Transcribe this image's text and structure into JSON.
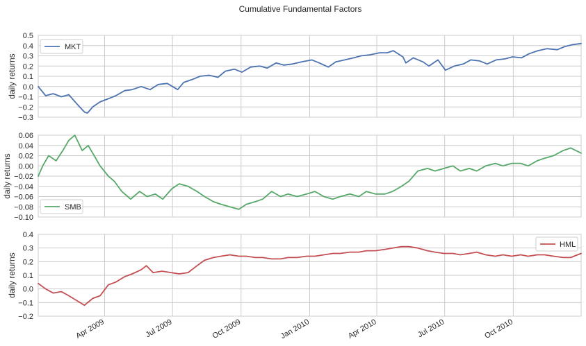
{
  "title": "Cumulative Fundamental Factors",
  "x_ticks": [
    "Apr 2009",
    "Jul 2009",
    "Oct 2009",
    "Jan 2010",
    "Apr 2010",
    "Jul 2010",
    "Oct 2010"
  ],
  "chart_data": [
    {
      "type": "line",
      "name": "MKT",
      "ylabel": "daily returns",
      "ylim": [
        -0.3,
        0.5
      ],
      "yticks": [
        "−0.3",
        "−0.2",
        "−0.1",
        "0.0",
        "0.1",
        "0.2",
        "0.3",
        "0.4",
        "0.5"
      ],
      "legend": "top-left",
      "color": "#4c72b0",
      "x": [
        "2009-01-02",
        "2009-01-12",
        "2009-01-22",
        "2009-02-02",
        "2009-02-12",
        "2009-02-24",
        "2009-03-05",
        "2009-03-09",
        "2009-03-16",
        "2009-03-26",
        "2009-04-06",
        "2009-04-16",
        "2009-04-28",
        "2009-05-08",
        "2009-05-20",
        "2009-06-01",
        "2009-06-12",
        "2009-06-24",
        "2009-07-08",
        "2009-07-16",
        "2009-07-28",
        "2009-08-07",
        "2009-08-19",
        "2009-08-31",
        "2009-09-10",
        "2009-09-22",
        "2009-10-02",
        "2009-10-14",
        "2009-10-26",
        "2009-11-05",
        "2009-11-17",
        "2009-11-27",
        "2009-12-09",
        "2009-12-21",
        "2010-01-04",
        "2010-01-14",
        "2010-01-26",
        "2010-02-05",
        "2010-02-17",
        "2010-03-01",
        "2010-03-11",
        "2010-03-23",
        "2010-04-05",
        "2010-04-15",
        "2010-04-23",
        "2010-05-06",
        "2010-05-10",
        "2010-05-20",
        "2010-06-02",
        "2010-06-10",
        "2010-06-22",
        "2010-07-02",
        "2010-07-14",
        "2010-07-26",
        "2010-08-05",
        "2010-08-17",
        "2010-08-27",
        "2010-09-08",
        "2010-09-20",
        "2010-09-30",
        "2010-10-12",
        "2010-10-22",
        "2010-11-03",
        "2010-11-15",
        "2010-11-29",
        "2010-12-09",
        "2010-12-20",
        "2010-12-31"
      ],
      "y": [
        0.0,
        -0.09,
        -0.07,
        -0.1,
        -0.08,
        -0.18,
        -0.25,
        -0.26,
        -0.2,
        -0.15,
        -0.12,
        -0.09,
        -0.04,
        -0.03,
        0.0,
        -0.03,
        0.02,
        0.03,
        -0.03,
        0.04,
        0.07,
        0.1,
        0.11,
        0.09,
        0.15,
        0.17,
        0.14,
        0.19,
        0.2,
        0.18,
        0.23,
        0.21,
        0.22,
        0.24,
        0.26,
        0.23,
        0.19,
        0.24,
        0.26,
        0.28,
        0.3,
        0.31,
        0.33,
        0.33,
        0.35,
        0.29,
        0.23,
        0.28,
        0.24,
        0.2,
        0.26,
        0.16,
        0.2,
        0.22,
        0.26,
        0.25,
        0.22,
        0.26,
        0.27,
        0.29,
        0.28,
        0.32,
        0.35,
        0.37,
        0.36,
        0.39,
        0.41,
        0.42
      ]
    },
    {
      "type": "line",
      "name": "SMB",
      "ylabel": "daily returns",
      "ylim": [
        -0.1,
        0.06
      ],
      "yticks": [
        "−0.10",
        "−0.08",
        "−0.06",
        "−0.04",
        "−0.02",
        "0.00",
        "0.02",
        "0.04",
        "0.06"
      ],
      "legend": "bottom-left",
      "color": "#55a868",
      "x": [
        "2009-01-02",
        "2009-01-08",
        "2009-01-16",
        "2009-01-26",
        "2009-02-04",
        "2009-02-12",
        "2009-02-20",
        "2009-03-02",
        "2009-03-10",
        "2009-03-18",
        "2009-03-26",
        "2009-04-06",
        "2009-04-14",
        "2009-04-24",
        "2009-05-06",
        "2009-05-18",
        "2009-05-28",
        "2009-06-08",
        "2009-06-18",
        "2009-06-30",
        "2009-07-10",
        "2009-07-22",
        "2009-08-03",
        "2009-08-13",
        "2009-08-25",
        "2009-09-04",
        "2009-09-16",
        "2009-09-28",
        "2009-10-08",
        "2009-10-20",
        "2009-10-30",
        "2009-11-11",
        "2009-11-23",
        "2009-12-03",
        "2009-12-15",
        "2009-12-28",
        "2010-01-08",
        "2010-01-20",
        "2010-02-01",
        "2010-02-11",
        "2010-02-24",
        "2010-03-08",
        "2010-03-18",
        "2010-03-30",
        "2010-04-12",
        "2010-04-22",
        "2010-05-04",
        "2010-05-14",
        "2010-05-26",
        "2010-06-08",
        "2010-06-18",
        "2010-06-30",
        "2010-07-12",
        "2010-07-22",
        "2010-08-03",
        "2010-08-13",
        "2010-08-25",
        "2010-09-07",
        "2010-09-17",
        "2010-09-29",
        "2010-10-11",
        "2010-10-21",
        "2010-11-02",
        "2010-11-12",
        "2010-11-24",
        "2010-12-07",
        "2010-12-17",
        "2010-12-31"
      ],
      "y": [
        -0.02,
        0.0,
        0.02,
        0.01,
        0.03,
        0.05,
        0.06,
        0.03,
        0.04,
        0.02,
        0.0,
        -0.02,
        -0.03,
        -0.05,
        -0.065,
        -0.05,
        -0.06,
        -0.055,
        -0.065,
        -0.045,
        -0.035,
        -0.04,
        -0.05,
        -0.06,
        -0.07,
        -0.075,
        -0.08,
        -0.085,
        -0.075,
        -0.07,
        -0.065,
        -0.05,
        -0.06,
        -0.055,
        -0.06,
        -0.055,
        -0.05,
        -0.06,
        -0.065,
        -0.06,
        -0.055,
        -0.06,
        -0.05,
        -0.055,
        -0.055,
        -0.05,
        -0.04,
        -0.03,
        -0.01,
        -0.005,
        -0.01,
        -0.005,
        0.0,
        -0.01,
        -0.005,
        -0.01,
        0.0,
        0.005,
        0.0,
        0.005,
        0.005,
        0.0,
        0.01,
        0.015,
        0.02,
        0.03,
        0.035,
        0.025
      ]
    },
    {
      "type": "line",
      "name": "HML",
      "ylabel": "daily returns",
      "ylim": [
        -0.2,
        0.4
      ],
      "yticks": [
        "−0.2",
        "−0.1",
        "0.0",
        "0.1",
        "0.2",
        "0.3",
        "0.4"
      ],
      "legend": "top-right",
      "color": "#c44e52",
      "x": [
        "2009-01-02",
        "2009-01-12",
        "2009-01-22",
        "2009-02-02",
        "2009-02-12",
        "2009-02-24",
        "2009-03-05",
        "2009-03-16",
        "2009-03-26",
        "2009-04-06",
        "2009-04-16",
        "2009-04-28",
        "2009-05-08",
        "2009-05-20",
        "2009-05-27",
        "2009-06-05",
        "2009-06-17",
        "2009-06-29",
        "2009-07-10",
        "2009-07-22",
        "2009-08-03",
        "2009-08-13",
        "2009-08-25",
        "2009-09-04",
        "2009-09-16",
        "2009-09-28",
        "2009-10-08",
        "2009-10-20",
        "2009-10-30",
        "2009-11-11",
        "2009-11-23",
        "2009-12-03",
        "2009-12-15",
        "2009-12-28",
        "2010-01-08",
        "2010-01-20",
        "2010-02-01",
        "2010-02-11",
        "2010-02-24",
        "2010-03-08",
        "2010-03-18",
        "2010-03-30",
        "2010-04-12",
        "2010-04-22",
        "2010-05-04",
        "2010-05-14",
        "2010-05-26",
        "2010-06-08",
        "2010-06-18",
        "2010-06-30",
        "2010-07-12",
        "2010-07-22",
        "2010-08-03",
        "2010-08-13",
        "2010-08-25",
        "2010-09-07",
        "2010-09-17",
        "2010-09-29",
        "2010-10-11",
        "2010-10-21",
        "2010-11-02",
        "2010-11-12",
        "2010-11-24",
        "2010-12-07",
        "2010-12-17",
        "2010-12-31"
      ],
      "y": [
        0.04,
        0.0,
        -0.03,
        -0.02,
        -0.05,
        -0.09,
        -0.12,
        -0.07,
        -0.05,
        0.03,
        0.05,
        0.09,
        0.11,
        0.14,
        0.17,
        0.12,
        0.13,
        0.12,
        0.11,
        0.12,
        0.17,
        0.21,
        0.23,
        0.24,
        0.25,
        0.24,
        0.24,
        0.23,
        0.23,
        0.22,
        0.22,
        0.23,
        0.23,
        0.24,
        0.24,
        0.25,
        0.26,
        0.26,
        0.27,
        0.27,
        0.28,
        0.28,
        0.29,
        0.3,
        0.31,
        0.31,
        0.3,
        0.28,
        0.27,
        0.26,
        0.26,
        0.25,
        0.26,
        0.27,
        0.25,
        0.24,
        0.25,
        0.24,
        0.25,
        0.24,
        0.25,
        0.25,
        0.24,
        0.23,
        0.23,
        0.26
      ]
    }
  ]
}
